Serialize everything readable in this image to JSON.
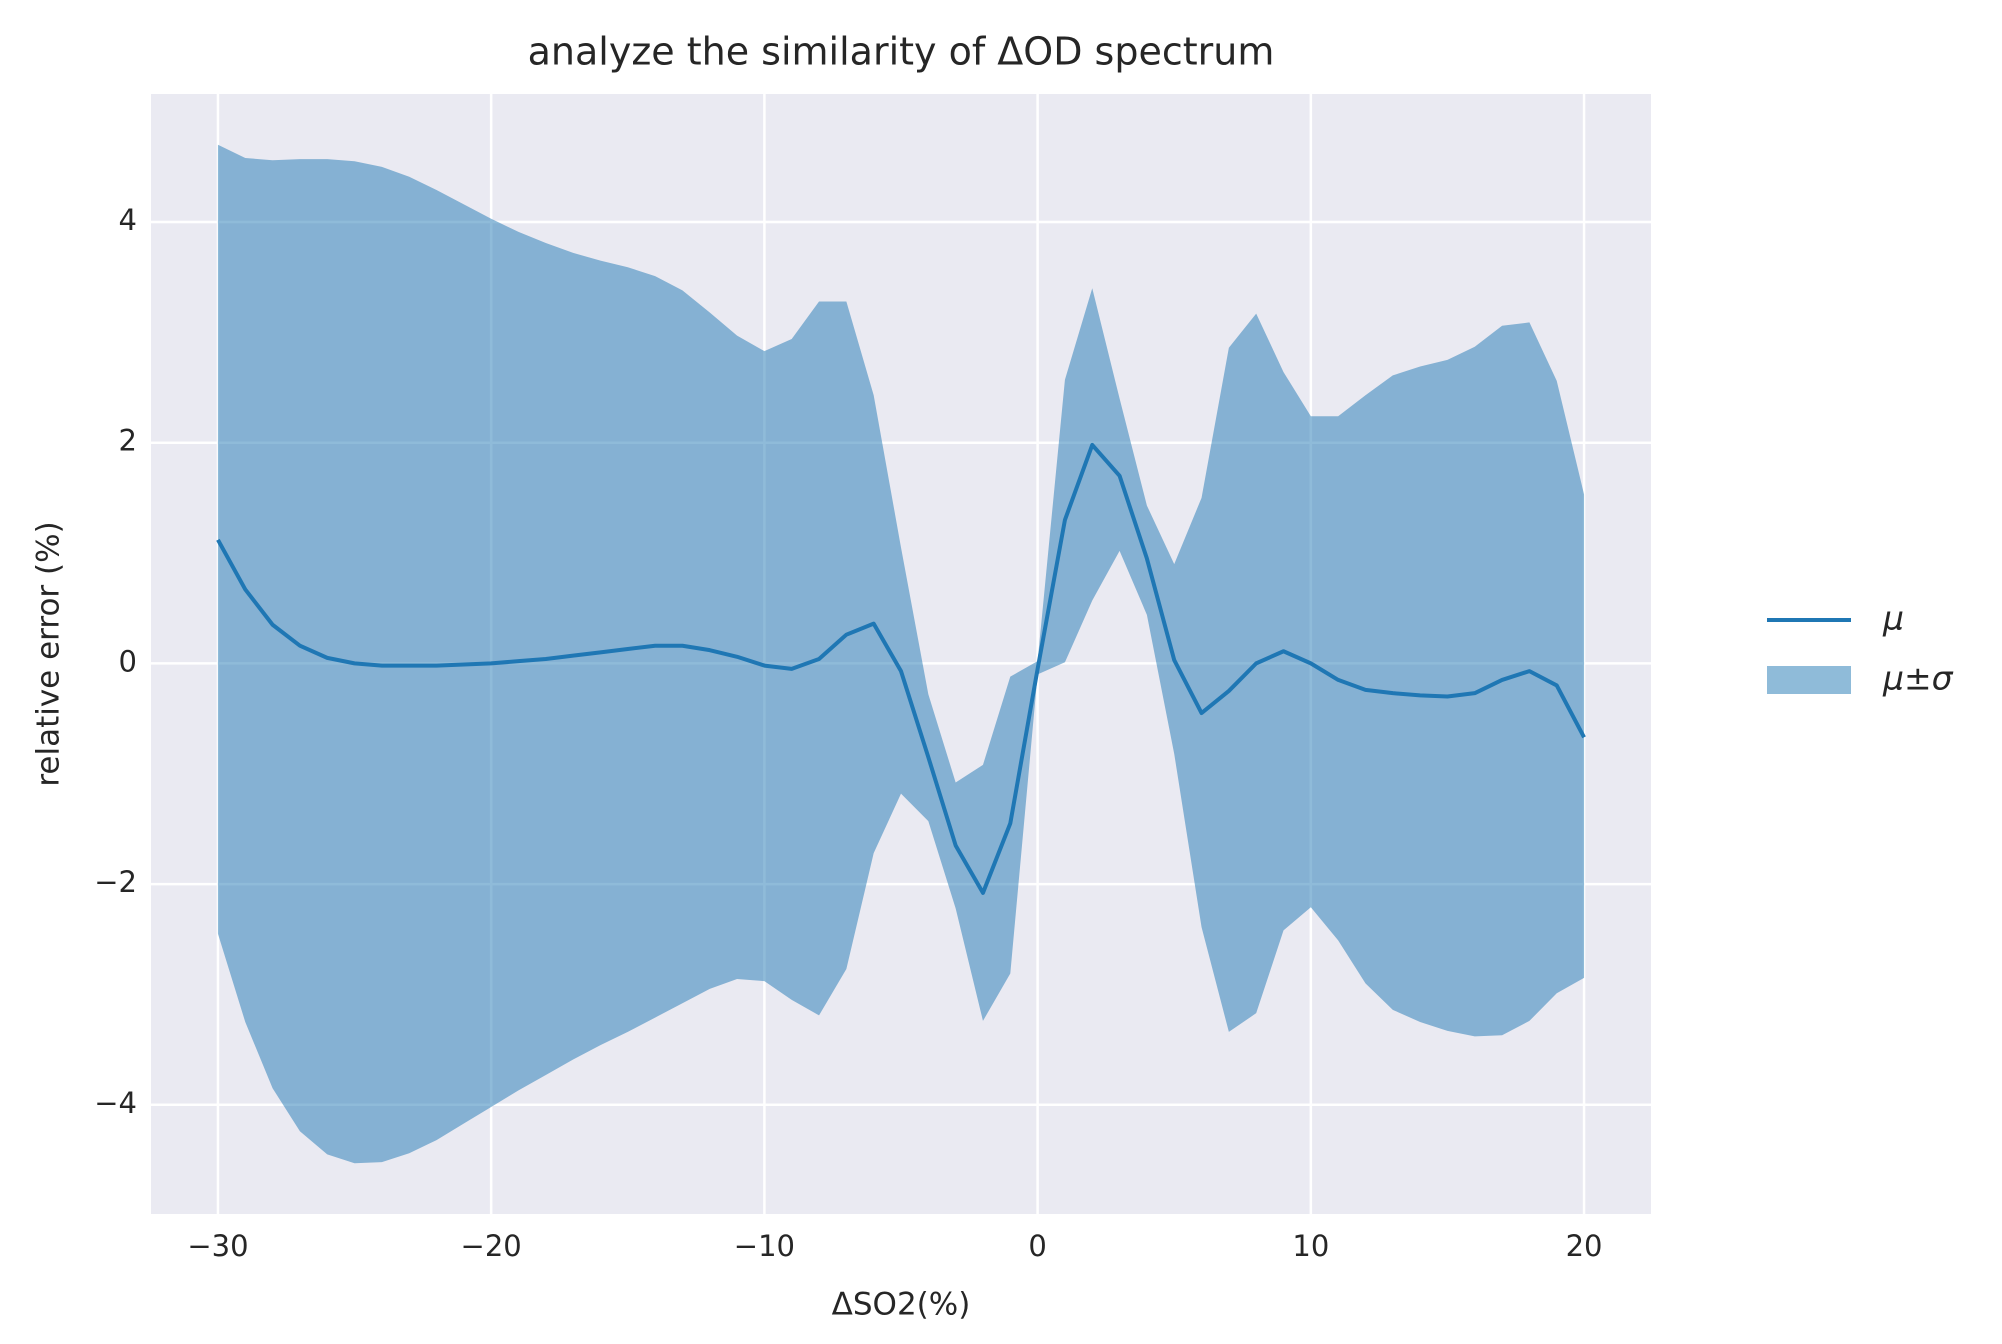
{
  "chart_data": {
    "type": "line",
    "title": "analyze the similarity of ΔOD spectrum",
    "x_label": "ΔSO2(%)",
    "y_label": "relative error (%)",
    "x": [
      -30,
      -29,
      -28,
      -27,
      -26,
      -25,
      -24,
      -23,
      -22,
      -21,
      -20,
      -19,
      -18,
      -17,
      -16,
      -15,
      -14,
      -13,
      -12,
      -11,
      -10,
      -9,
      -8,
      -7,
      -6,
      -5,
      -4,
      -3,
      -2,
      -1,
      0,
      1,
      2,
      3,
      4,
      5,
      6,
      7,
      8,
      9,
      10,
      11,
      12,
      13,
      14,
      15,
      16,
      17,
      18,
      19,
      20
    ],
    "series": [
      {
        "name": "μ",
        "color": "#1f77b4",
        "values": [
          1.12,
          0.67,
          0.35,
          0.16,
          0.05,
          0.0,
          -0.02,
          -0.02,
          -0.02,
          -0.01,
          0.0,
          0.02,
          0.04,
          0.07,
          0.1,
          0.13,
          0.16,
          0.16,
          0.12,
          0.06,
          -0.02,
          -0.05,
          0.04,
          0.26,
          0.36,
          -0.07,
          -0.85,
          -1.65,
          -2.08,
          -1.45,
          -0.05,
          1.3,
          1.98,
          1.7,
          0.95,
          0.03,
          -0.45,
          -0.25,
          0.0,
          0.11,
          0.0,
          -0.15,
          -0.24,
          -0.27,
          -0.29,
          -0.3,
          -0.27,
          -0.15,
          -0.07,
          -0.2,
          -0.67
        ]
      },
      {
        "name": "μ±σ",
        "color": "#1f77b4",
        "alpha": 0.5,
        "upper": [
          4.7,
          4.58,
          4.56,
          4.57,
          4.57,
          4.55,
          4.5,
          4.41,
          4.29,
          4.16,
          4.03,
          3.91,
          3.81,
          3.72,
          3.65,
          3.59,
          3.51,
          3.38,
          3.18,
          2.97,
          2.83,
          2.94,
          3.28,
          3.28,
          2.43,
          1.05,
          -0.28,
          -1.08,
          -0.92,
          -0.12,
          0.02,
          2.57,
          3.4,
          2.4,
          1.43,
          0.9,
          1.5,
          2.86,
          3.17,
          2.64,
          2.24,
          2.24,
          2.43,
          2.61,
          2.69,
          2.75,
          2.87,
          3.06,
          3.09,
          2.56,
          1.53
        ],
        "lower": [
          -2.45,
          -3.25,
          -3.85,
          -4.24,
          -4.45,
          -4.53,
          -4.52,
          -4.44,
          -4.32,
          -4.17,
          -4.02,
          -3.87,
          -3.73,
          -3.59,
          -3.46,
          -3.34,
          -3.21,
          -3.08,
          -2.95,
          -2.86,
          -2.88,
          -3.05,
          -3.19,
          -2.77,
          -1.72,
          -1.18,
          -1.43,
          -2.22,
          -3.24,
          -2.81,
          -0.1,
          0.01,
          0.57,
          1.02,
          0.44,
          -0.82,
          -2.39,
          -3.34,
          -3.17,
          -2.42,
          -2.21,
          -2.51,
          -2.9,
          -3.14,
          -3.25,
          -3.33,
          -3.38,
          -3.37,
          -3.24,
          -2.99,
          -2.85
        ]
      }
    ],
    "xlim": [
      -32.45,
      22.45
    ],
    "ylim": [
      -4.99,
      5.16
    ],
    "xticks": [
      {
        "value": -30,
        "label": "−30"
      },
      {
        "value": -20,
        "label": "−20"
      },
      {
        "value": -10,
        "label": "−10"
      },
      0,
      10,
      20
    ],
    "yticks": [
      {
        "value": -4,
        "label": "−4"
      },
      {
        "value": -2,
        "label": "−2"
      },
      0,
      2,
      4
    ],
    "grid": true,
    "background": "#eaeaf2",
    "legend_position": "right"
  }
}
